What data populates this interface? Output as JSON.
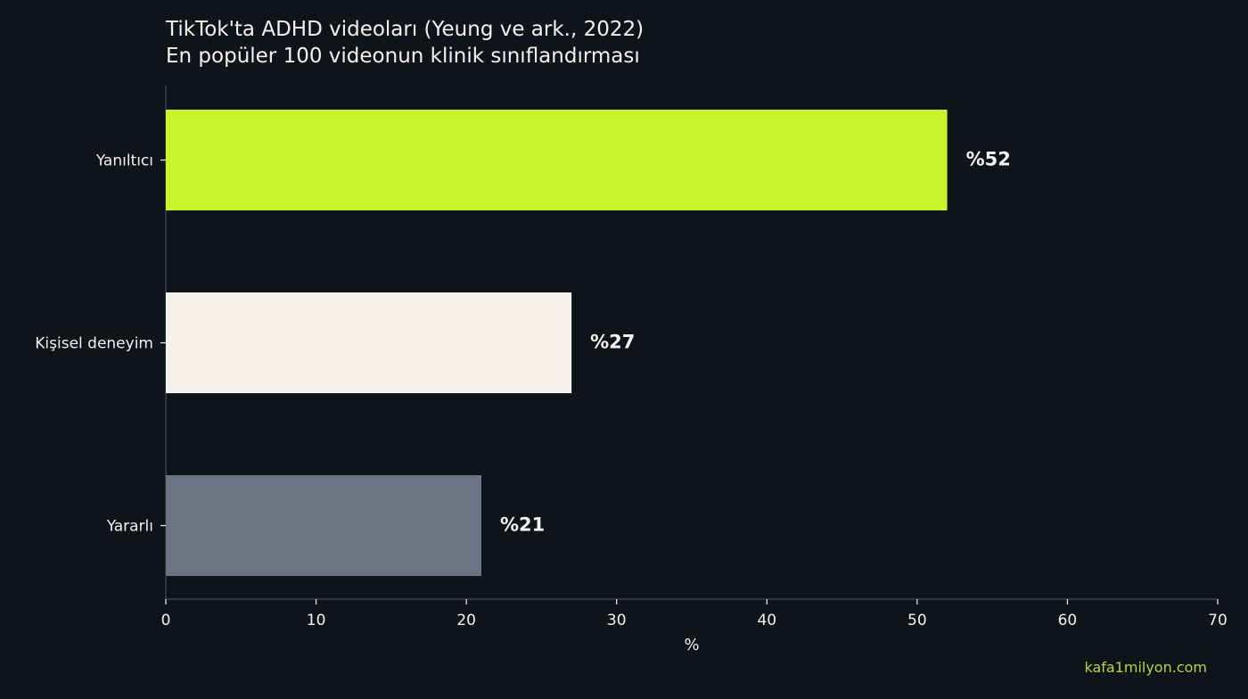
{
  "chart_data": {
    "type": "bar",
    "orientation": "horizontal",
    "title": "TikTok'ta ADHD videoları (Yeung ve ark., 2022)",
    "subtitle": "En popüler 100 videonun klinik sınıflandırması",
    "categories": [
      "Yanıltıcı",
      "Kişisel deneyim",
      "Yararlı"
    ],
    "values": [
      52,
      27,
      21
    ],
    "data_labels": [
      "%52",
      "%27",
      "%21"
    ],
    "bar_colors": [
      "#c9f32b",
      "#f5f2ec",
      "#6b7482"
    ],
    "xlabel": "%",
    "ylabel": "",
    "xlim": [
      0,
      70
    ],
    "xticks": [
      0,
      10,
      20,
      30,
      40,
      50,
      60,
      70
    ],
    "grid": false,
    "legend": "none"
  },
  "watermark": "kafa1milyon.com",
  "colors": {
    "background": "#0f131a",
    "text": "#f4f2ee",
    "axis": "#3a3f48",
    "watermark": "#b7d63a"
  }
}
